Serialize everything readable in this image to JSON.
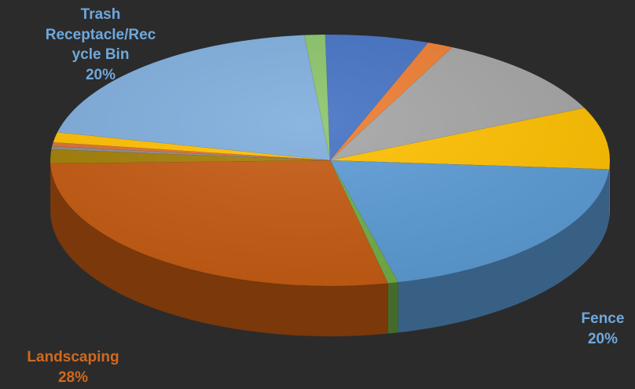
{
  "chart_data": {
    "type": "pie",
    "slices": [
      {
        "label": "",
        "value": 6,
        "color": "#4472c4"
      },
      {
        "label": "",
        "value": 1.5,
        "color": "#ed7d31"
      },
      {
        "label": "",
        "value": 11,
        "color": "#a5a5a5"
      },
      {
        "label": "",
        "value": 8,
        "color": "#ffc000"
      },
      {
        "label": "Fence",
        "value": 20,
        "percent_text": "20%",
        "color": "#5b9bd5"
      },
      {
        "label": "",
        "value": 0.6,
        "color": "#70ad47"
      },
      {
        "label": "Landscaping",
        "value": 28,
        "percent_text": "28%",
        "color": "#c55a11"
      },
      {
        "label": "",
        "value": 1.8,
        "color": "#a37f05"
      },
      {
        "label": "",
        "value": 0.4,
        "color": "#8c8c8c"
      },
      {
        "label": "",
        "value": 0.5,
        "color": "#e07030"
      },
      {
        "label": "",
        "value": 1.3,
        "color": "#ffc000"
      },
      {
        "label": "Trash Receptacle/Recycle Bin",
        "value": 20,
        "percent_text": "20%",
        "color": "#7faedd"
      },
      {
        "label": "",
        "value": 1.2,
        "color": "#8bc46a"
      }
    ]
  },
  "labels": {
    "trash": {
      "lines": [
        "Trash",
        "Receptacle/Rec",
        "ycle Bin",
        "20%"
      ],
      "color": "#6fa8dc"
    },
    "fence": {
      "lines": [
        "Fence",
        "20%"
      ],
      "color": "#6fa8dc"
    },
    "landscaping": {
      "lines": [
        "Landscaping",
        "28%"
      ],
      "color": "#d2691e"
    }
  }
}
